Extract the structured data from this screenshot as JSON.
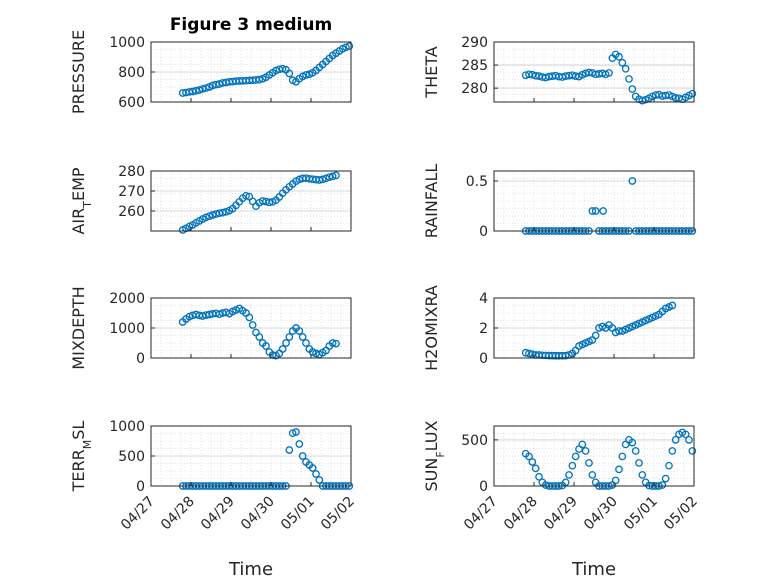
{
  "figure": {
    "title": "Figure 3 medium",
    "xlabel": "Time",
    "date_ticks": [
      "04/27",
      "04/28",
      "04/29",
      "04/30",
      "05/01",
      "05/02"
    ]
  },
  "colors": {
    "marker": "#0072BD",
    "grid": "#dcdcdc",
    "axis": "#262626"
  },
  "chart_data": [
    {
      "type": "scatter",
      "ylabel": "PRESSURE",
      "ylim": [
        600,
        1000
      ],
      "yticks": [
        600,
        800,
        1000
      ],
      "xlim": [
        "04/27",
        "05/02"
      ],
      "x_start": "04/27",
      "x_step_hours": 2,
      "values": [
        660,
        663,
        667,
        670,
        675,
        680,
        687,
        693,
        700,
        710,
        716,
        720,
        727,
        730,
        734,
        736,
        739,
        740,
        741,
        742,
        744,
        745,
        747,
        749,
        755,
        765,
        780,
        795,
        810,
        818,
        822,
        815,
        790,
        745,
        735,
        755,
        770,
        780,
        785,
        795,
        810,
        830,
        850,
        870,
        890,
        910,
        925,
        940,
        955,
        965,
        972,
        978,
        982,
        985,
        986,
        985,
        984,
        986,
        988,
        987,
        986,
        985
      ]
    },
    {
      "type": "scatter",
      "ylabel": "THETA",
      "ylim": [
        277,
        290
      ],
      "yticks": [
        280,
        285,
        290
      ],
      "xlim": [
        "04/27",
        "05/02"
      ],
      "x_start": "04/27",
      "x_step_hours": 2,
      "values": [
        282.8,
        283.0,
        282.9,
        282.7,
        282.6,
        282.4,
        282.3,
        282.5,
        282.6,
        282.7,
        282.5,
        282.4,
        282.6,
        282.7,
        282.8,
        282.6,
        282.5,
        282.9,
        283.2,
        283.4,
        283.3,
        283.0,
        283.1,
        283.2,
        283.0,
        283.3,
        286.5,
        287.3,
        286.8,
        285.5,
        284.2,
        282.0,
        279.8,
        278.2,
        277.6,
        277.3,
        277.5,
        277.8,
        278.2,
        278.5,
        278.6,
        278.3,
        278.4,
        278.5,
        278.2,
        277.9,
        277.8,
        277.6,
        278.0,
        278.4,
        278.8,
        279.3,
        279.6
      ]
    },
    {
      "type": "scatter",
      "ylabel": "AIR_TEMP",
      "ylim": [
        250,
        280
      ],
      "yticks": [
        260,
        270,
        280
      ],
      "xlim": [
        "04/27",
        "05/02"
      ],
      "x_start": "04/27",
      "x_step_hours": 2,
      "values": [
        250.5,
        251.3,
        252.2,
        253.0,
        254.1,
        255.0,
        256.0,
        256.8,
        257.4,
        258.0,
        258.5,
        258.9,
        259.2,
        259.6,
        260.2,
        261.2,
        262.8,
        264.6,
        266.4,
        267.6,
        267.2,
        264.8,
        262.4,
        264.1,
        265.0,
        264.7,
        264.3,
        264.6,
        265.4,
        267.0,
        268.9,
        270.6,
        272.1,
        273.5,
        274.9,
        275.8,
        276.3,
        276.4,
        276.1,
        275.9,
        275.7,
        275.5,
        275.8,
        276.3,
        276.9,
        277.3,
        277.8
      ]
    },
    {
      "type": "scatter",
      "ylabel": "RAINFALL",
      "ylim": [
        0,
        0.6
      ],
      "yticks": [
        0,
        0.5
      ],
      "xlim": [
        "04/27",
        "05/02"
      ],
      "x_start": "04/27",
      "x_step_hours": 2,
      "values": [
        0,
        0,
        0,
        0,
        0,
        0,
        0,
        0,
        0,
        0,
        0,
        0,
        0,
        0,
        0,
        0,
        0,
        0,
        0,
        0,
        0.2,
        0.2,
        0,
        0,
        0,
        0,
        0,
        0,
        0,
        0,
        0,
        0,
        0.5,
        0,
        0,
        0,
        0,
        0,
        0,
        0,
        0,
        0,
        0,
        0,
        0,
        0,
        0,
        0,
        0,
        0,
        0,
        0,
        0,
        0,
        0,
        0,
        0,
        0,
        0,
        0,
        0,
        0,
        0,
        0,
        0,
        0,
        0,
        0,
        0,
        0,
        0,
        0
      ],
      "extra_points": [
        {
          "x_hours": 65.5,
          "value": 0.2
        }
      ]
    },
    {
      "type": "scatter",
      "ylabel": "MIXDEPTH",
      "ylim": [
        0,
        2000
      ],
      "yticks": [
        0,
        1000,
        2000
      ],
      "xlim": [
        "04/27",
        "05/02"
      ],
      "x_start": "04/27",
      "x_step_hours": 2,
      "values": [
        1200,
        1300,
        1380,
        1420,
        1450,
        1420,
        1400,
        1430,
        1450,
        1470,
        1490,
        1460,
        1500,
        1520,
        1480,
        1550,
        1600,
        1650,
        1580,
        1500,
        1350,
        1100,
        850,
        700,
        500,
        400,
        200,
        100,
        80,
        150,
        300,
        500,
        700,
        900,
        1000,
        900,
        700,
        500,
        300,
        200,
        150,
        120,
        180,
        250,
        400,
        500,
        480
      ]
    },
    {
      "type": "scatter",
      "ylabel": "H2OMIXRA",
      "ylim": [
        0,
        4
      ],
      "yticks": [
        0,
        2,
        4
      ],
      "xlim": [
        "04/27",
        "05/02"
      ],
      "x_start": "04/27",
      "x_step_hours": 2,
      "values": [
        0.35,
        0.3,
        0.25,
        0.2,
        0.2,
        0.18,
        0.17,
        0.16,
        0.16,
        0.15,
        0.15,
        0.15,
        0.16,
        0.2,
        0.3,
        0.5,
        0.8,
        0.9,
        1.0,
        1.1,
        1.2,
        1.5,
        2.0,
        2.1,
        2.0,
        2.2,
        2.0,
        1.7,
        1.8,
        1.8,
        1.9,
        2.0,
        2.1,
        2.2,
        2.3,
        2.4,
        2.5,
        2.6,
        2.7,
        2.8,
        2.9,
        3.1,
        3.3,
        3.4,
        3.5
      ]
    },
    {
      "type": "scatter",
      "ylabel": "TERR_MSL",
      "ylim": [
        0,
        1000
      ],
      "yticks": [
        0,
        500,
        1000
      ],
      "xlim": [
        "04/27",
        "05/02"
      ],
      "x_start": "04/27",
      "x_step_hours": 2,
      "values": [
        0,
        0,
        0,
        0,
        0,
        0,
        0,
        0,
        0,
        0,
        0,
        0,
        0,
        0,
        0,
        0,
        0,
        0,
        0,
        0,
        0,
        0,
        0,
        0,
        0,
        0,
        0,
        0,
        0,
        0,
        0,
        0,
        600,
        880,
        900,
        700,
        500,
        400,
        350,
        300,
        200,
        100,
        0,
        0,
        0,
        0,
        0,
        0,
        0,
        0,
        0,
        0,
        0,
        0,
        0,
        0,
        0,
        0,
        0,
        0,
        0,
        0,
        0,
        0,
        0,
        0,
        0,
        0,
        0,
        0,
        0,
        0
      ]
    },
    {
      "type": "scatter",
      "ylabel": "SUN_FLUX",
      "ylim": [
        0,
        650
      ],
      "yticks": [
        0,
        500
      ],
      "xlim": [
        "04/27",
        "05/02"
      ],
      "x_start": "04/27",
      "x_step_hours": 2,
      "values": [
        350,
        320,
        260,
        190,
        100,
        40,
        10,
        0,
        0,
        0,
        0,
        5,
        40,
        120,
        220,
        320,
        400,
        450,
        380,
        250,
        120,
        40,
        0,
        0,
        0,
        0,
        10,
        60,
        180,
        320,
        450,
        500,
        470,
        380,
        250,
        120,
        40,
        5,
        0,
        0,
        0,
        10,
        80,
        220,
        380,
        500,
        560,
        580,
        560,
        500,
        380,
        200,
        60,
        5,
        0,
        0,
        0,
        20,
        200,
        380,
        560,
        620,
        600,
        560,
        500
      ]
    }
  ]
}
